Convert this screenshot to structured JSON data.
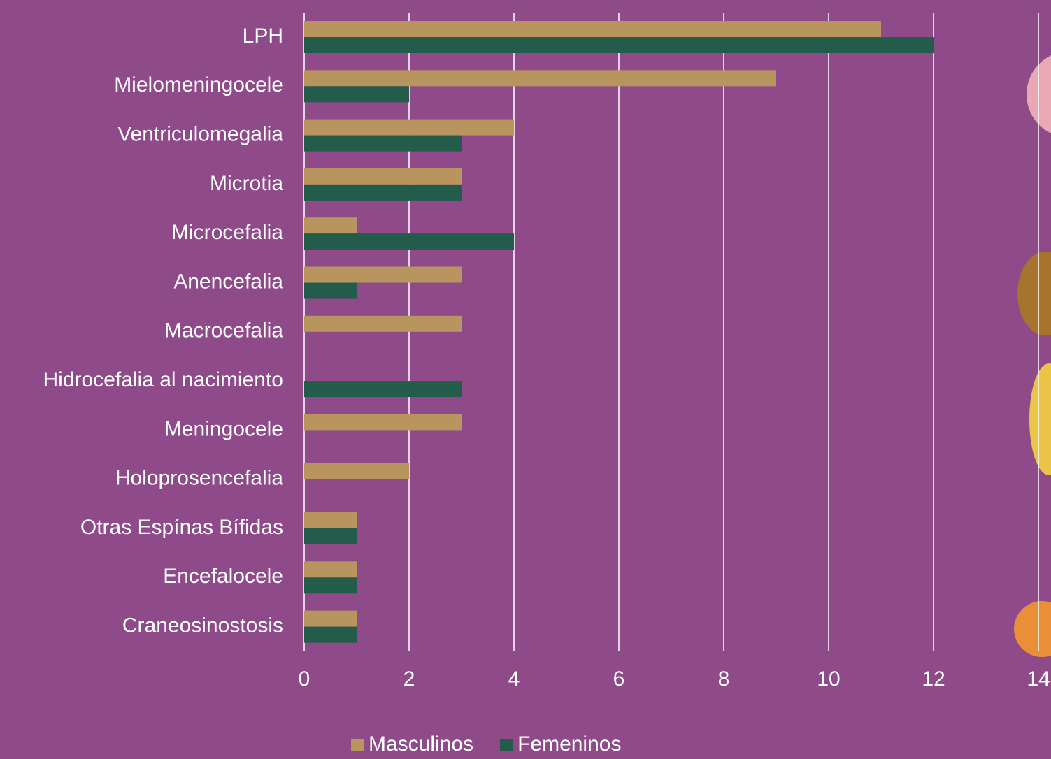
{
  "chart_data": {
    "type": "hbar",
    "categories": [
      "LPH",
      "Mielomeningocele",
      "Ventriculomegalia",
      "Microtia",
      "Microcefalia",
      "Anencefalia",
      "Macrocefalia",
      "Hidrocefalia al nacimiento",
      "Meningocele",
      "Holoprosencefalia",
      "Otras Espínas Bífidas",
      "Encefalocele",
      "Craneosinostosis"
    ],
    "series": [
      {
        "name": "Masculinos",
        "color": "#b8945f",
        "values": [
          11,
          9,
          4,
          3,
          1,
          3,
          3,
          null,
          3,
          2,
          1,
          1,
          1
        ]
      },
      {
        "name": "Femeninos",
        "color": "#235c4b",
        "values": [
          12,
          2,
          3,
          3,
          4,
          1,
          null,
          3,
          null,
          null,
          1,
          1,
          1
        ]
      }
    ],
    "xlim": [
      0,
      14
    ],
    "xticks": [
      0,
      2,
      4,
      6,
      8,
      10,
      12,
      14
    ],
    "grid": true,
    "legend": "bottom"
  }
}
